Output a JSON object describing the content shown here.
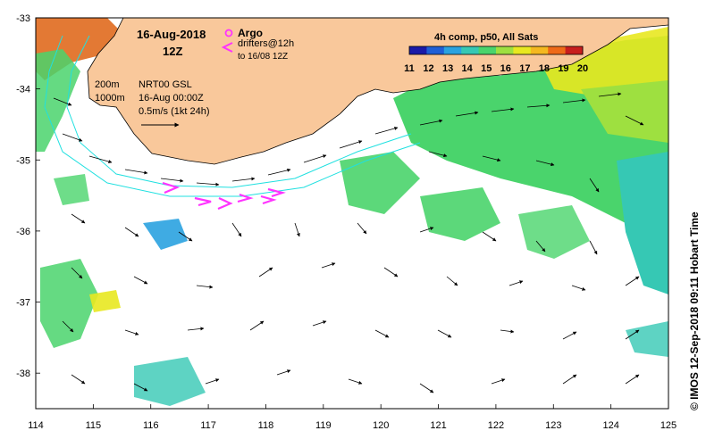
{
  "title": {
    "date": "16-Aug-2018",
    "hour": "12Z"
  },
  "legend": {
    "argo_label": "Argo",
    "drifters_label": "drifters@12h",
    "drifters_sub": "to 16/08 12Z",
    "argo_color": "#ff33ff",
    "drifter_color": "#ff33ff"
  },
  "info": {
    "contour_200": "200m",
    "contour_1000": "1000m",
    "product": "NRT00 GSL",
    "time": "16-Aug 00:00Z",
    "scale": "0.5m/s (1kt 24h)"
  },
  "colorbar": {
    "title": "4h comp, p50, All Sats",
    "ticks": [
      "11",
      "12",
      "13",
      "14",
      "15",
      "16",
      "17",
      "18",
      "19",
      "20"
    ],
    "colors": [
      "#1a1aa8",
      "#1f5fd6",
      "#2aa2e0",
      "#36c8b4",
      "#4ad46c",
      "#9ee040",
      "#e8e820",
      "#f4b820",
      "#ee6a18",
      "#c81e1e"
    ]
  },
  "axes": {
    "x_ticks": [
      "114",
      "115",
      "116",
      "117",
      "118",
      "119",
      "120",
      "121",
      "122",
      "123",
      "124",
      "125"
    ],
    "y_ticks": [
      "-33",
      "-34",
      "-35",
      "-36",
      "-37",
      "-38"
    ],
    "lon_range": [
      114,
      125
    ],
    "lat_range": [
      -38.5,
      -33
    ]
  },
  "credit": "© IMOS 12-Sep-2018 09:11 Hobart Time",
  "colors": {
    "land": "#f9c89b",
    "ocean": "#ffffff",
    "shelf": "#20e0e0"
  }
}
